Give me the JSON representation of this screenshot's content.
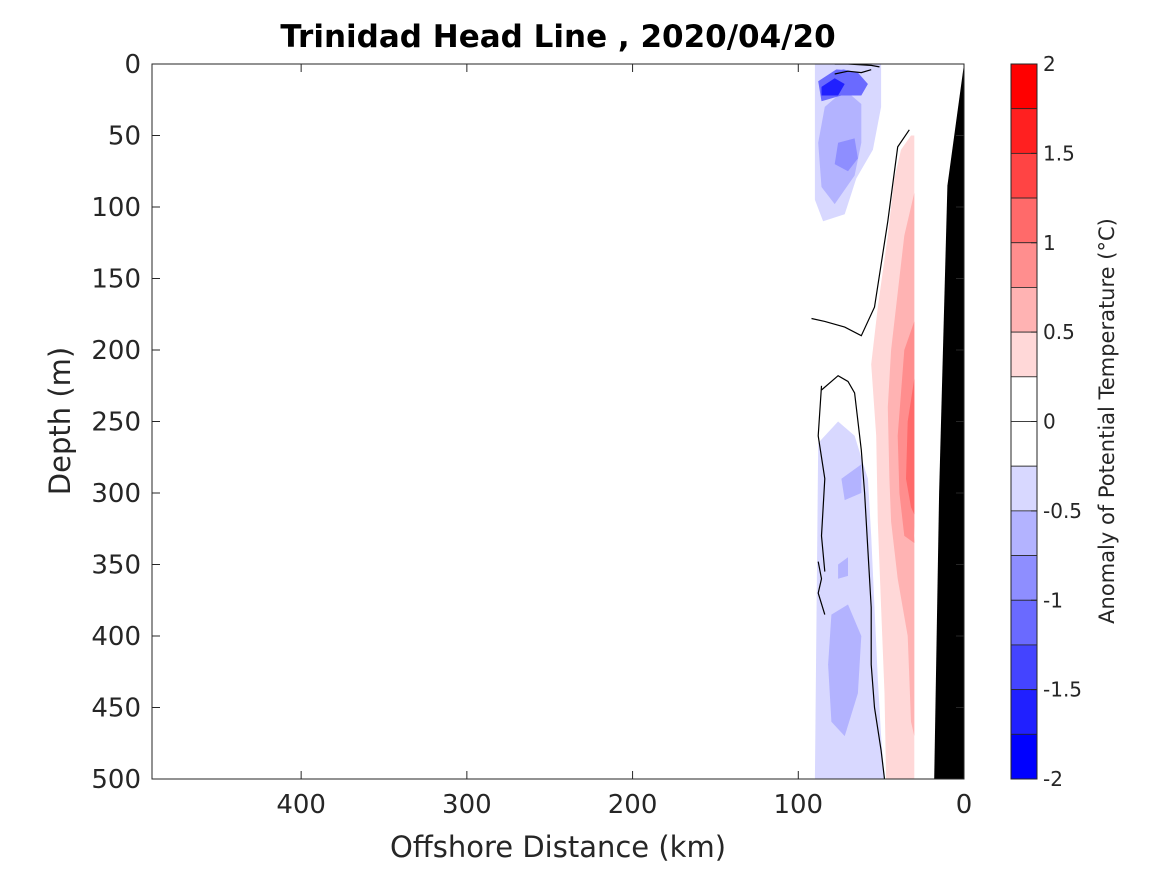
{
  "chart_data": {
    "type": "heatmap",
    "title": "Trinidad Head Line , 2020/04/20",
    "xlabel": "Offshore Distance (km)",
    "ylabel": "Depth (m)",
    "xlim": [
      490,
      0
    ],
    "ylim": [
      0,
      500
    ],
    "x_ticks": [
      400,
      300,
      200,
      100,
      0
    ],
    "y_ticks": [
      0,
      50,
      100,
      150,
      200,
      250,
      300,
      350,
      400,
      450,
      500
    ],
    "x_tick_labels": [
      "400",
      "300",
      "200",
      "100",
      "0"
    ],
    "y_tick_labels": [
      "0",
      "50",
      "100",
      "150",
      "200",
      "250",
      "300",
      "350",
      "400",
      "450",
      "500"
    ],
    "colorbar": {
      "label": "Anomaly of Potential Temperature (°C)",
      "limits": [
        -2,
        2
      ],
      "tick_values": [
        2,
        1.5,
        1,
        0.5,
        0,
        -0.5,
        -1,
        -1.5,
        -2
      ],
      "tick_labels": [
        "2",
        "1.5",
        "1",
        "0.5",
        "0",
        "-0.5",
        "-1",
        "-1.5",
        "-2"
      ],
      "levels": [
        {
          "range": [
            1.75,
            2.0
          ],
          "color": "#ff0000"
        },
        {
          "range": [
            1.5,
            1.75
          ],
          "color": "#ff2020"
        },
        {
          "range": [
            1.25,
            1.5
          ],
          "color": "#ff4444"
        },
        {
          "range": [
            1.0,
            1.25
          ],
          "color": "#ff6a6a"
        },
        {
          "range": [
            0.75,
            1.0
          ],
          "color": "#ff8e8e"
        },
        {
          "range": [
            0.5,
            0.75
          ],
          "color": "#ffb3b3"
        },
        {
          "range": [
            0.25,
            0.5
          ],
          "color": "#ffd8d8"
        },
        {
          "range": [
            0.0,
            0.25
          ],
          "color": "#ffffff"
        },
        {
          "range": [
            -0.25,
            0.0
          ],
          "color": "#ffffff"
        },
        {
          "range": [
            -0.5,
            -0.25
          ],
          "color": "#d8d8ff"
        },
        {
          "range": [
            -0.75,
            -0.5
          ],
          "color": "#b3b3ff"
        },
        {
          "range": [
            -1.0,
            -0.75
          ],
          "color": "#8e8eff"
        },
        {
          "range": [
            -1.25,
            -1.0
          ],
          "color": "#6a6aff"
        },
        {
          "range": [
            -1.5,
            -1.25
          ],
          "color": "#4444ff"
        },
        {
          "range": [
            -1.75,
            -1.5
          ],
          "color": "#2020ff"
        },
        {
          "range": [
            -2.0,
            -1.75
          ],
          "color": "#0000ff"
        }
      ]
    },
    "zero_contour_color": "#000000",
    "bathymetry_color": "#000000",
    "regions": [
      {
        "anomaly": -0.4,
        "points": [
          [
            90,
            0
          ],
          [
            68,
            0
          ],
          [
            50,
            0
          ],
          [
            50,
            30
          ],
          [
            55,
            60
          ],
          [
            65,
            80
          ],
          [
            72,
            105
          ],
          [
            85,
            110
          ],
          [
            90,
            95
          ]
        ]
      },
      {
        "anomaly": -0.6,
        "points": [
          [
            84,
            30
          ],
          [
            72,
            18
          ],
          [
            62,
            28
          ],
          [
            62,
            55
          ],
          [
            66,
            78
          ],
          [
            78,
            98
          ],
          [
            86,
            86
          ],
          [
            88,
            55
          ]
        ]
      },
      {
        "anomaly": -0.9,
        "points": [
          [
            76,
            55
          ],
          [
            66,
            52
          ],
          [
            64,
            66
          ],
          [
            70,
            75
          ],
          [
            78,
            70
          ]
        ]
      },
      {
        "anomaly": -1.2,
        "points": [
          [
            88,
            12
          ],
          [
            76,
            3
          ],
          [
            64,
            6
          ],
          [
            58,
            14
          ],
          [
            62,
            22
          ],
          [
            74,
            22
          ],
          [
            86,
            26
          ]
        ]
      },
      {
        "anomaly": -1.6,
        "points": [
          [
            86,
            16
          ],
          [
            78,
            10
          ],
          [
            72,
            14
          ],
          [
            76,
            22
          ],
          [
            86,
            22
          ]
        ]
      },
      {
        "anomaly": -0.4,
        "points": [
          [
            90,
            0
          ],
          [
            88,
            -0.0
          ],
          [
            78,
            0
          ],
          [
            65,
            0
          ],
          [
            60,
            2
          ],
          [
            74,
            4
          ],
          [
            88,
            3
          ]
        ]
      },
      {
        "anomaly": 0.4,
        "points": [
          [
            32,
            50
          ],
          [
            38,
            60
          ],
          [
            42,
            80
          ],
          [
            46,
            120
          ],
          [
            52,
            170
          ],
          [
            56,
            210
          ],
          [
            53,
            260
          ],
          [
            52,
            320
          ],
          [
            50,
            380
          ],
          [
            48,
            440
          ],
          [
            47,
            500
          ],
          [
            40,
            500
          ],
          [
            30,
            500
          ],
          [
            30,
            50
          ]
        ]
      },
      {
        "anomaly": 0.6,
        "points": [
          [
            30,
            90
          ],
          [
            36,
            120
          ],
          [
            40,
            160
          ],
          [
            44,
            200
          ],
          [
            46,
            240
          ],
          [
            45,
            290
          ],
          [
            44,
            320
          ],
          [
            40,
            360
          ],
          [
            34,
            400
          ],
          [
            32,
            460
          ],
          [
            30,
            470
          ]
        ]
      },
      {
        "anomaly": 0.9,
        "points": [
          [
            30,
            180
          ],
          [
            36,
            200
          ],
          [
            38,
            230
          ],
          [
            40,
            260
          ],
          [
            39,
            300
          ],
          [
            36,
            330
          ],
          [
            30,
            335
          ]
        ]
      },
      {
        "anomaly": 1.2,
        "points": [
          [
            30,
            220
          ],
          [
            34,
            250
          ],
          [
            35,
            290
          ],
          [
            32,
            310
          ],
          [
            30,
            315
          ]
        ]
      },
      {
        "anomaly": -0.4,
        "points": [
          [
            88,
            265
          ],
          [
            76,
            250
          ],
          [
            66,
            260
          ],
          [
            58,
            290
          ],
          [
            56,
            330
          ],
          [
            54,
            380
          ],
          [
            52,
            430
          ],
          [
            50,
            470
          ],
          [
            48,
            500
          ],
          [
            90,
            500
          ]
        ]
      },
      {
        "anomaly": -0.6,
        "points": [
          [
            74,
            290
          ],
          [
            62,
            280
          ],
          [
            62,
            300
          ],
          [
            72,
            305
          ]
        ]
      },
      {
        "anomaly": -0.7,
        "points": [
          [
            80,
            385
          ],
          [
            70,
            378
          ],
          [
            62,
            400
          ],
          [
            64,
            440
          ],
          [
            72,
            470
          ],
          [
            80,
            460
          ],
          [
            82,
            420
          ]
        ]
      },
      {
        "anomaly": -0.7,
        "points": [
          [
            76,
            350
          ],
          [
            70,
            345
          ],
          [
            70,
            358
          ],
          [
            76,
            360
          ]
        ]
      }
    ],
    "zero_contours": [
      [
        [
          78,
          0
        ],
        [
          70,
          -0.0
        ],
        [
          56,
          1
        ],
        [
          51,
          2
        ]
      ],
      [
        [
          78,
          7
        ],
        [
          70,
          5
        ],
        [
          62,
          6
        ],
        [
          56,
          4
        ]
      ],
      [
        [
          33,
          46
        ],
        [
          40,
          58
        ],
        [
          46,
          110
        ],
        [
          54,
          170
        ],
        [
          62,
          190
        ],
        [
          72,
          184
        ],
        [
          84,
          180
        ],
        [
          92,
          178
        ]
      ],
      [
        [
          86,
          228
        ],
        [
          76,
          218
        ],
        [
          70,
          222
        ],
        [
          66,
          230
        ],
        [
          62,
          270
        ],
        [
          60,
          300
        ],
        [
          58,
          340
        ],
        [
          56,
          380
        ],
        [
          56,
          420
        ],
        [
          54,
          450
        ],
        [
          50,
          480
        ],
        [
          48,
          500
        ]
      ],
      [
        [
          86,
          225
        ],
        [
          88,
          260
        ],
        [
          84,
          290
        ],
        [
          86,
          330
        ],
        [
          84,
          355
        ]
      ],
      [
        [
          88,
          348
        ],
        [
          86,
          360
        ],
        [
          88,
          370
        ],
        [
          84,
          385
        ]
      ]
    ],
    "bathymetry": [
      [
        0,
        0
      ],
      [
        10,
        85
      ],
      [
        15,
        300
      ],
      [
        18,
        500
      ],
      [
        0,
        500
      ]
    ],
    "mask_coast": [
      [
        28,
        0
      ],
      [
        18,
        0
      ],
      [
        12,
        90
      ],
      [
        15,
        300
      ],
      [
        18,
        500
      ],
      [
        25,
        500
      ],
      [
        30,
        330
      ],
      [
        28,
        210
      ],
      [
        30,
        30
      ]
    ]
  }
}
